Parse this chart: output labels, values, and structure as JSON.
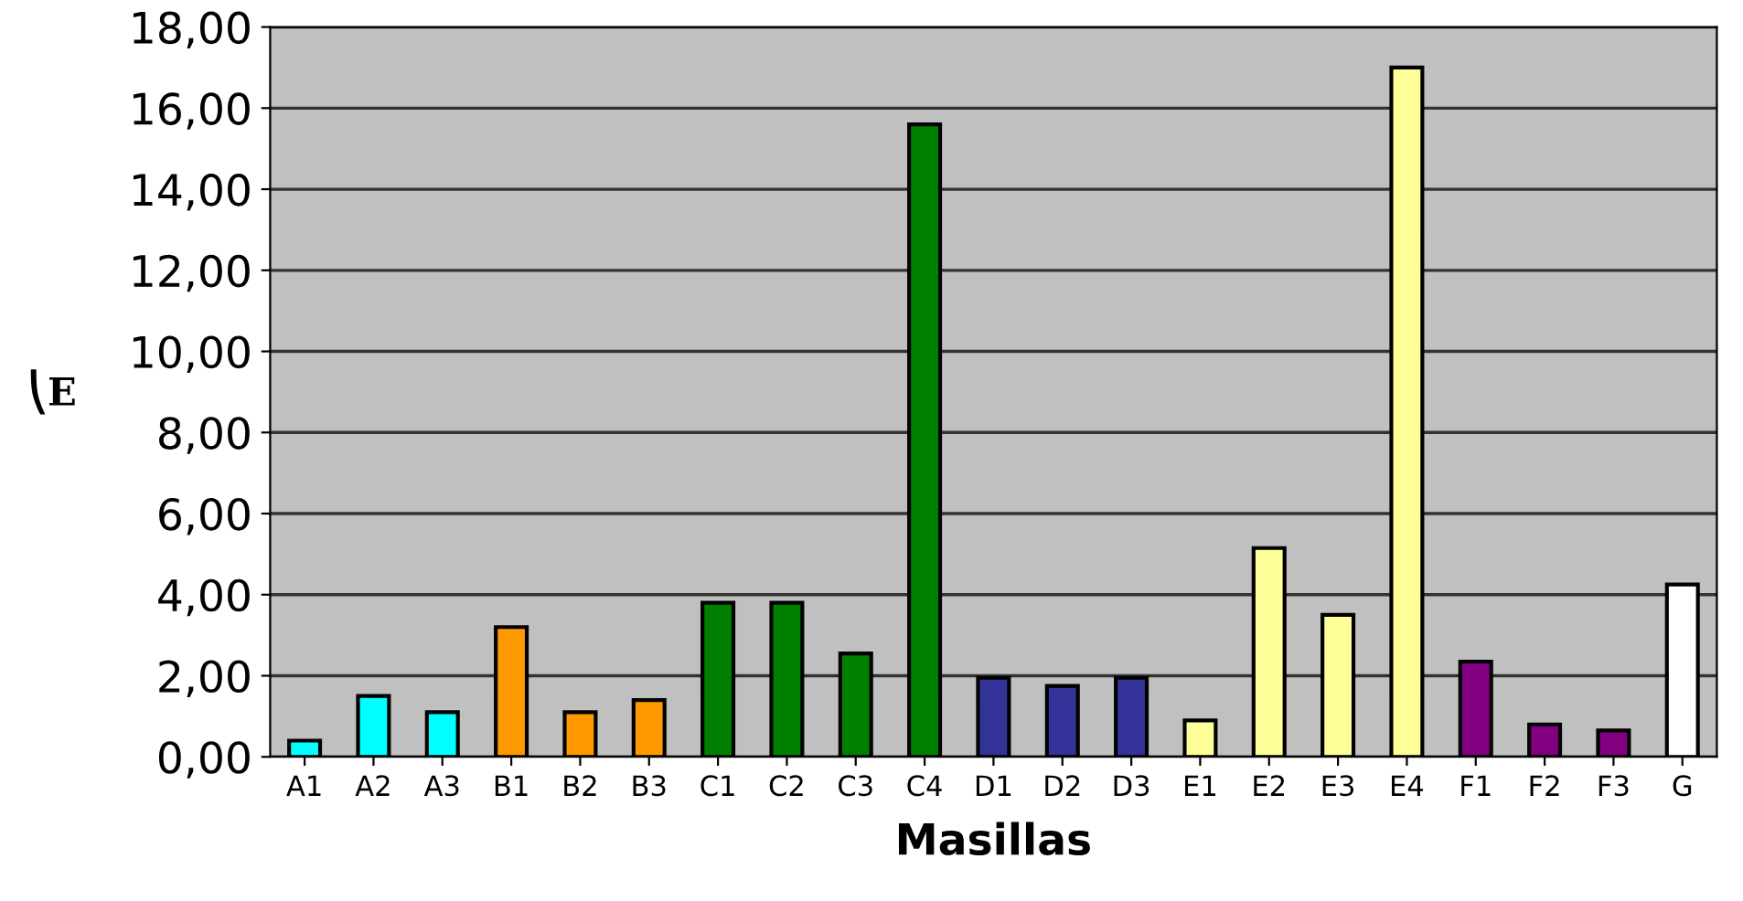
{
  "chart_data": {
    "type": "bar",
    "xlabel": "Masillas",
    "ylabel": "⎝E",
    "categories": [
      "A1",
      "A2",
      "A3",
      "B1",
      "B2",
      "B3",
      "C1",
      "C2",
      "C3",
      "C4",
      "D1",
      "D2",
      "D3",
      "E1",
      "E2",
      "E3",
      "E4",
      "F1",
      "F2",
      "F3",
      "G"
    ],
    "values": [
      0.4,
      1.5,
      1.1,
      3.2,
      1.1,
      1.4,
      3.8,
      3.8,
      2.55,
      15.6,
      1.95,
      1.75,
      1.95,
      0.9,
      5.15,
      3.5,
      17.0,
      2.35,
      0.8,
      0.65,
      4.25
    ],
    "colors": [
      "#00ffff",
      "#00ffff",
      "#00ffff",
      "#ff9900",
      "#ff9900",
      "#ff9900",
      "#008000",
      "#008000",
      "#008000",
      "#008000",
      "#333399",
      "#333399",
      "#333399",
      "#ffff99",
      "#ffff99",
      "#ffff99",
      "#ffff99",
      "#800080",
      "#800080",
      "#800080",
      "#ffffff"
    ],
    "ylim": [
      0,
      18
    ],
    "yticks": [
      {
        "value": 0,
        "label": "0,00"
      },
      {
        "value": 2,
        "label": "2,00"
      },
      {
        "value": 4,
        "label": "4,00"
      },
      {
        "value": 6,
        "label": "6,00"
      },
      {
        "value": 8,
        "label": "8,00"
      },
      {
        "value": 10,
        "label": "10,00"
      },
      {
        "value": 12,
        "label": "12,00"
      },
      {
        "value": 14,
        "label": "14,00"
      },
      {
        "value": 16,
        "label": "16,00"
      },
      {
        "value": 18,
        "label": "18,00"
      }
    ],
    "grid": "y",
    "legend": false
  }
}
